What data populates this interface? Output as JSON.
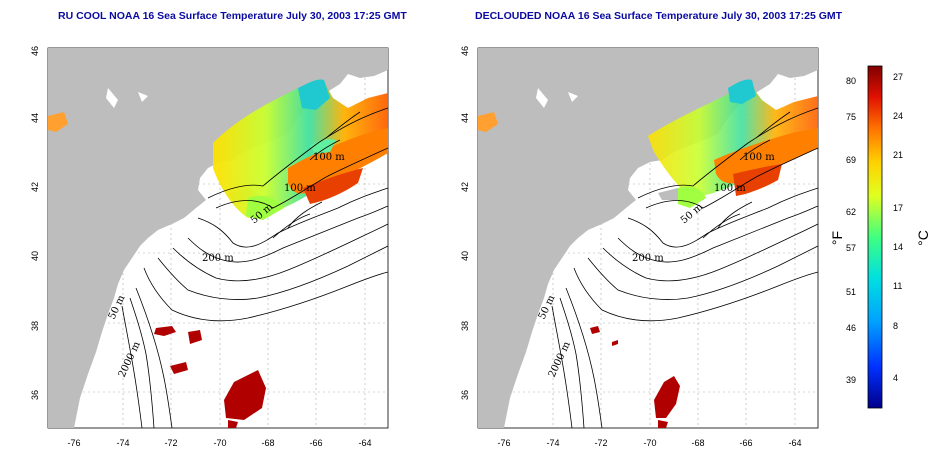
{
  "panels": [
    {
      "title": "RU COOL NOAA 16 Sea Surface Temperature July 30, 2003 17:25 GMT"
    },
    {
      "title": "DECLOUDED NOAA 16 Sea Surface Temperature July 30, 2003 17:25 GMT"
    }
  ],
  "axes": {
    "lat_ticks": [
      "36",
      "38",
      "40",
      "42",
      "44",
      "46"
    ],
    "lon_ticks": [
      "-76",
      "-74",
      "-72",
      "-70",
      "-68",
      "-66",
      "-64"
    ]
  },
  "contours": {
    "labels": [
      "100 m",
      "100 m",
      "50 m",
      "200 m",
      "50 m",
      "2000 m"
    ]
  },
  "colorbar": {
    "fahrenheit_ticks": [
      "80",
      "75",
      "69",
      "62",
      "57",
      "51",
      "46",
      "39"
    ],
    "celsius_ticks": [
      "27",
      "24",
      "21",
      "17",
      "14",
      "11",
      "8",
      "4"
    ],
    "fahrenheit_unit": "°F",
    "celsius_unit": "°C"
  },
  "colors": {
    "land": "#bdbdbd",
    "ocean": "#ffffff",
    "title": "#0a0aa0",
    "warm": "#b00000",
    "cool": "#0000c0"
  }
}
